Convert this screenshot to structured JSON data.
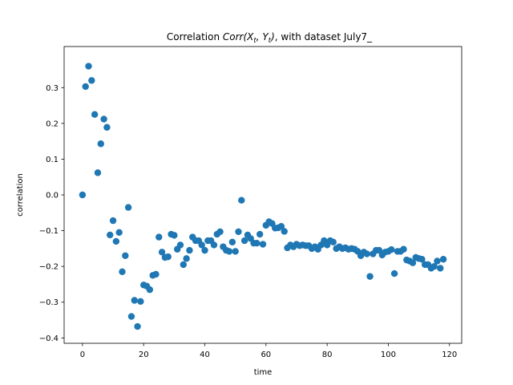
{
  "chart_data": {
    "type": "scatter",
    "title_prefix": "Correlation ",
    "title_math": "Corr(X",
    "title_sub1": "t",
    "title_mid": ", Y",
    "title_sub2": "t",
    "title_close": ")",
    "title_suffix": ", with dataset July7_",
    "xlabel": "time",
    "ylabel": "correlation",
    "xlim": [
      -6,
      124
    ],
    "ylim": [
      -0.415,
      0.415
    ],
    "xticks": [
      0,
      20,
      40,
      60,
      80,
      100,
      120
    ],
    "xtick_labels": [
      "0",
      "20",
      "40",
      "60",
      "80",
      "100",
      "120"
    ],
    "yticks": [
      -0.4,
      -0.3,
      -0.2,
      -0.1,
      0.0,
      0.1,
      0.2,
      0.3
    ],
    "ytick_labels": [
      "−0.4",
      "−0.3",
      "−0.2",
      "−0.1",
      "0.0",
      "0.1",
      "0.2",
      "0.3"
    ],
    "grid": false,
    "marker_color": "#1f77b4",
    "x": [
      0,
      1,
      2,
      3,
      4,
      5,
      6,
      7,
      8,
      9,
      10,
      11,
      12,
      13,
      14,
      15,
      16,
      17,
      18,
      19,
      20,
      21,
      22,
      23,
      24,
      25,
      26,
      27,
      28,
      29,
      30,
      31,
      32,
      33,
      34,
      35,
      36,
      37,
      38,
      39,
      40,
      41,
      42,
      43,
      44,
      45,
      46,
      47,
      48,
      49,
      50,
      51,
      52,
      53,
      54,
      55,
      56,
      57,
      58,
      59,
      60,
      61,
      62,
      63,
      64,
      65,
      66,
      67,
      68,
      69,
      70,
      71,
      72,
      73,
      74,
      75,
      76,
      77,
      78,
      79,
      80,
      81,
      82,
      83,
      84,
      85,
      86,
      87,
      88,
      89,
      90,
      91,
      92,
      93,
      94,
      95,
      96,
      97,
      98,
      99,
      100,
      101,
      102,
      103,
      104,
      105,
      106,
      107,
      108,
      109,
      110,
      111,
      112,
      113,
      114,
      115,
      116,
      117,
      118
    ],
    "y": [
      0.0,
      0.303,
      0.36,
      0.32,
      0.225,
      0.062,
      0.143,
      0.212,
      0.189,
      -0.112,
      -0.072,
      -0.13,
      -0.105,
      -0.215,
      -0.17,
      -0.035,
      -0.34,
      -0.295,
      -0.368,
      -0.298,
      -0.252,
      -0.255,
      -0.265,
      -0.225,
      -0.222,
      -0.118,
      -0.16,
      -0.175,
      -0.173,
      -0.11,
      -0.113,
      -0.152,
      -0.14,
      -0.195,
      -0.178,
      -0.155,
      -0.118,
      -0.128,
      -0.128,
      -0.14,
      -0.155,
      -0.128,
      -0.128,
      -0.14,
      -0.11,
      -0.103,
      -0.145,
      -0.155,
      -0.158,
      -0.132,
      -0.158,
      -0.103,
      -0.015,
      -0.128,
      -0.112,
      -0.122,
      -0.135,
      -0.135,
      -0.11,
      -0.138,
      -0.085,
      -0.075,
      -0.08,
      -0.093,
      -0.092,
      -0.088,
      -0.102,
      -0.148,
      -0.14,
      -0.145,
      -0.138,
      -0.142,
      -0.14,
      -0.142,
      -0.142,
      -0.15,
      -0.145,
      -0.152,
      -0.14,
      -0.128,
      -0.14,
      -0.128,
      -0.132,
      -0.15,
      -0.145,
      -0.15,
      -0.148,
      -0.152,
      -0.15,
      -0.152,
      -0.158,
      -0.17,
      -0.16,
      -0.165,
      -0.228,
      -0.165,
      -0.155,
      -0.155,
      -0.168,
      -0.16,
      -0.158,
      -0.153,
      -0.22,
      -0.158,
      -0.158,
      -0.152,
      -0.182,
      -0.185,
      -0.19,
      -0.175,
      -0.178,
      -0.18,
      -0.195,
      -0.195,
      -0.205,
      -0.2,
      -0.185,
      -0.205,
      -0.18
    ]
  }
}
